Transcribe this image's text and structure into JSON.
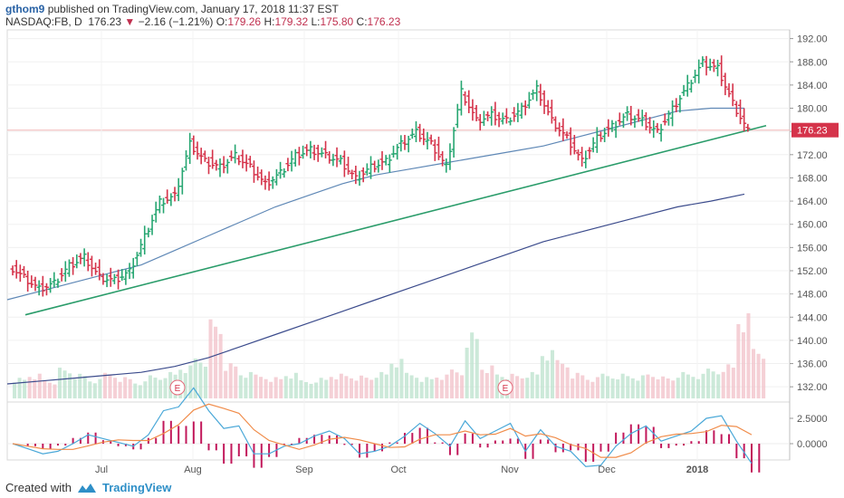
{
  "header": {
    "author": "gthom9",
    "published": "published on TradingView.com, January 17, 2018 11:37 EST",
    "symbol": "NASDAQ:FB, D",
    "last": "176.23",
    "change_arrow": "▼",
    "change": "−2.16 (−1.21%)",
    "o_label": "O:",
    "o": "179.26",
    "h_label": "H:",
    "h": "179.32",
    "l_label": "L:",
    "l": "175.80",
    "c_label": "C:",
    "c": "176.23"
  },
  "footer": {
    "created_with": "Created with",
    "brand": "TradingView"
  },
  "colors": {
    "up": "#26a671",
    "down": "#d5334a",
    "trend": "#2a9c6a",
    "ma50": "#5f88b6",
    "ma200": "#3b4b8c",
    "macd": "#4aa8d8",
    "signal": "#f08c4a",
    "hist": "#c2185b"
  },
  "chart_data": {
    "type": "ohlc",
    "price_axis": {
      "ticks": [
        "192.00",
        "188.00",
        "184.00",
        "180.00",
        "176.00",
        "172.00",
        "168.00",
        "164.00",
        "160.00",
        "156.00",
        "152.00",
        "148.00",
        "144.00",
        "140.00",
        "136.00",
        "132.00"
      ],
      "range": [
        130.0,
        193.5
      ]
    },
    "last_price_label": "176.23",
    "macd_axis": {
      "ticks": [
        "2.5000",
        "0.0000"
      ]
    },
    "time_labels": [
      "Jul",
      "Aug",
      "Sep",
      "Oct",
      "Nov",
      "Dec",
      "2018"
    ],
    "earnings_markers": [
      "E",
      "E"
    ],
    "trendline": {
      "start": [
        0.0,
        144.4
      ],
      "end": [
        1.0,
        177.0
      ]
    },
    "ma50_approx": [
      147.0,
      148.5,
      150.0,
      151.5,
      153.0,
      155.5,
      158.0,
      160.5,
      163.0,
      165.0,
      167.0,
      168.5,
      169.5,
      170.5,
      171.5,
      172.5,
      173.5,
      175.0,
      176.5,
      178.0,
      179.5,
      180.0,
      180.0
    ],
    "ma200_approx": [
      132.5,
      133.0,
      133.5,
      134.0,
      134.5,
      135.5,
      137.0,
      139.0,
      141.0,
      143.0,
      145.0,
      147.0,
      149.0,
      151.0,
      153.0,
      155.0,
      157.0,
      158.5,
      160.0,
      161.5,
      163.0,
      164.0,
      165.2
    ],
    "close_path": [
      153.0,
      151.0,
      149.0,
      150.0,
      153.0,
      154.5,
      151.0,
      150.5,
      152.0,
      158.0,
      164.0,
      165.0,
      174.0,
      171.0,
      170.0,
      172.0,
      170.0,
      167.0,
      169.0,
      172.0,
      173.0,
      172.0,
      171.0,
      168.0,
      170.0,
      171.0,
      174.0,
      176.0,
      174.0,
      170.0,
      183.0,
      178.0,
      179.0,
      178.0,
      180.0,
      183.5,
      178.0,
      175.0,
      171.0,
      175.0,
      177.0,
      179.0,
      178.0,
      176.0,
      180.0,
      184.0,
      188.0,
      187.0,
      181.0,
      176.2
    ],
    "volume_approx": [
      0.25,
      0.3,
      0.22,
      0.35,
      0.28,
      0.22,
      0.3,
      0.25,
      0.2,
      0.28,
      0.32,
      0.4,
      0.5,
      0.9,
      0.4,
      0.3,
      0.28,
      0.25,
      0.3,
      0.22,
      0.25,
      0.3,
      0.28,
      0.26,
      0.3,
      0.45,
      0.3,
      0.25,
      0.28,
      0.35,
      0.8,
      0.4,
      0.3,
      0.28,
      0.3,
      0.55,
      0.45,
      0.3,
      0.25,
      0.3,
      0.3,
      0.28,
      0.3,
      0.25,
      0.3,
      0.28,
      0.35,
      0.4,
      1.0,
      0.6
    ]
  }
}
